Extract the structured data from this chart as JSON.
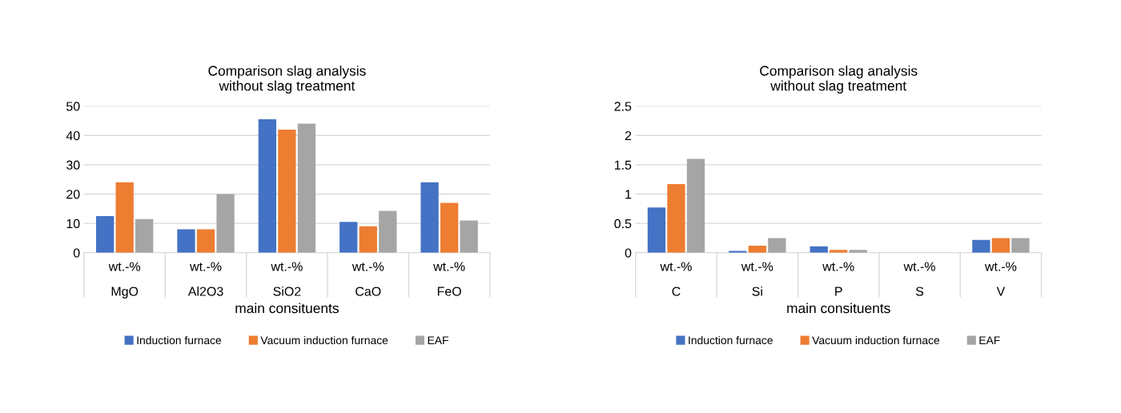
{
  "chart_data": [
    {
      "type": "bar",
      "title": "Comparison slag analysis\nwithout slag treatment",
      "xlabel": "main consituents",
      "categories": [
        "wt.-%\nMgO",
        "wt.-%\nAl2O3",
        "wt.-%\nSiO2",
        "wt.-%\nCaO",
        "wt.-%\nFeO"
      ],
      "series": [
        {
          "name": "Induction furnace",
          "color": "#4472c4",
          "values": [
            12.5,
            8,
            45.5,
            10.5,
            24
          ]
        },
        {
          "name": "Vacuum induction furnace",
          "color": "#ed7d31",
          "values": [
            24,
            8,
            42,
            9,
            17
          ]
        },
        {
          "name": "EAF",
          "color": "#a5a5a5",
          "values": [
            11.5,
            20,
            44,
            14.3,
            11
          ]
        }
      ],
      "ylim": [
        0,
        50
      ],
      "yticks": [
        0,
        10,
        20,
        30,
        40,
        50
      ],
      "grid": "y",
      "legend": "bottom"
    },
    {
      "type": "bar",
      "title": "Comparison slag analysis\nwithout slag treatment",
      "xlabel": "main consituents",
      "categories": [
        "wt.-%\nC",
        "wt.-%\nSi",
        "wt.-%\nP",
        "wt.-%\nS",
        "wt.-%\nV"
      ],
      "series": [
        {
          "name": "Induction furnace",
          "color": "#4472c4",
          "values": [
            0.77,
            0.03,
            0.11,
            0,
            0.22
          ]
        },
        {
          "name": "Vacuum induction furnace",
          "color": "#ed7d31",
          "values": [
            1.17,
            0.12,
            0.05,
            0,
            0.25
          ]
        },
        {
          "name": "EAF",
          "color": "#a5a5a5",
          "values": [
            1.6,
            0.25,
            0.05,
            0,
            0.25
          ]
        }
      ],
      "ylim": [
        0,
        2.5
      ],
      "yticks": [
        0,
        0.5,
        1,
        1.5,
        2,
        2.5
      ],
      "grid": "y",
      "legend": "bottom"
    }
  ]
}
